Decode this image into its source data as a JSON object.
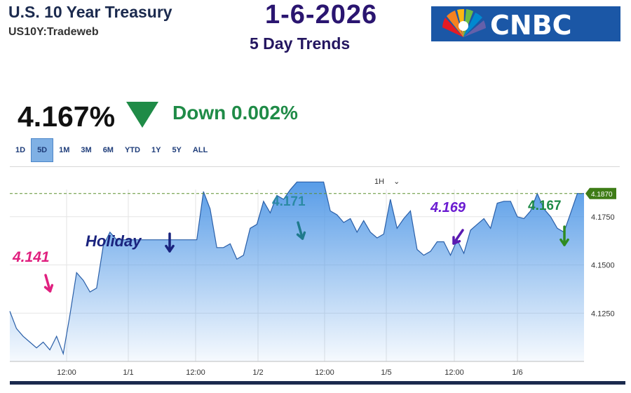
{
  "header": {
    "title": "U.S. 10 Year Treasury",
    "symbol": "US10Y:Tradeweb",
    "date": "1-6-2026",
    "subtitle": "5 Day Trends",
    "logo_text": "CNBC"
  },
  "quote": {
    "price": "4.167%",
    "change": "Down 0.002%",
    "direction_icon": "down-triangle-icon",
    "direction_color": "#1f8b47"
  },
  "ranges": {
    "items": [
      "1D",
      "5D",
      "1M",
      "3M",
      "6M",
      "YTD",
      "1Y",
      "5Y",
      "ALL"
    ],
    "active": "5D"
  },
  "chart_controls": {
    "interval": "1H",
    "interval_icon": "chevron-down-icon"
  },
  "chart_data": {
    "type": "area",
    "x_ticks": [
      "12:00",
      "1/1",
      "12:00",
      "1/2",
      "12:00",
      "1/5",
      "12:00",
      "1/6"
    ],
    "y_ticks": [
      4.125,
      4.15,
      4.175
    ],
    "y_tick_labels": [
      "4.1250",
      "4.1500",
      "4.1750"
    ],
    "ylim": [
      4.1,
      4.2
    ],
    "reference_line": {
      "value": 4.187,
      "label": "4.1870",
      "style": "dashed",
      "color": "#5a8f2e"
    },
    "fill_color": "#4f97e6",
    "line_color": "#2a5fa8",
    "series": [
      {
        "values": [
          4.126,
          4.117,
          4.113,
          4.11,
          4.107,
          4.11,
          4.106,
          4.113,
          4.104,
          4.124,
          4.146,
          4.142,
          4.136,
          4.138,
          4.16,
          4.167,
          4.163,
          4.163,
          4.163,
          4.163,
          4.163,
          4.163,
          4.163,
          4.163,
          4.163,
          4.163,
          4.163,
          4.163,
          4.163,
          4.188,
          4.179,
          4.159,
          4.159,
          4.161,
          4.153,
          4.155,
          4.169,
          4.171,
          4.183,
          4.177,
          4.186,
          4.184,
          4.189,
          4.193,
          4.193,
          4.193,
          4.193,
          4.193,
          4.178,
          4.176,
          4.172,
          4.174,
          4.167,
          4.173,
          4.167,
          4.164,
          4.166,
          4.184,
          4.169,
          4.174,
          4.178,
          4.158,
          4.155,
          4.157,
          4.162,
          4.162,
          4.155,
          4.163,
          4.156,
          4.168,
          4.171,
          4.174,
          4.169,
          4.182,
          4.183,
          4.183,
          4.175,
          4.174,
          4.178,
          4.187,
          4.179,
          4.175,
          4.169,
          4.167,
          4.177,
          4.187,
          4.187
        ]
      }
    ]
  },
  "annotations": [
    {
      "label": "4.141",
      "color": "#e0207f",
      "arrow_color": "#e0207f"
    },
    {
      "label": "Holiday",
      "color": "#1a237e",
      "arrow_color": "#1a237e"
    },
    {
      "label": "4.171",
      "color": "#2b8aa4",
      "arrow_color": "#1f7a8c"
    },
    {
      "label": "4.169",
      "color": "#6a1bd1",
      "arrow_color": "#5a1ab0"
    },
    {
      "label": "4.167",
      "color": "#1f8b47",
      "arrow_color": "#2e8b20"
    }
  ]
}
